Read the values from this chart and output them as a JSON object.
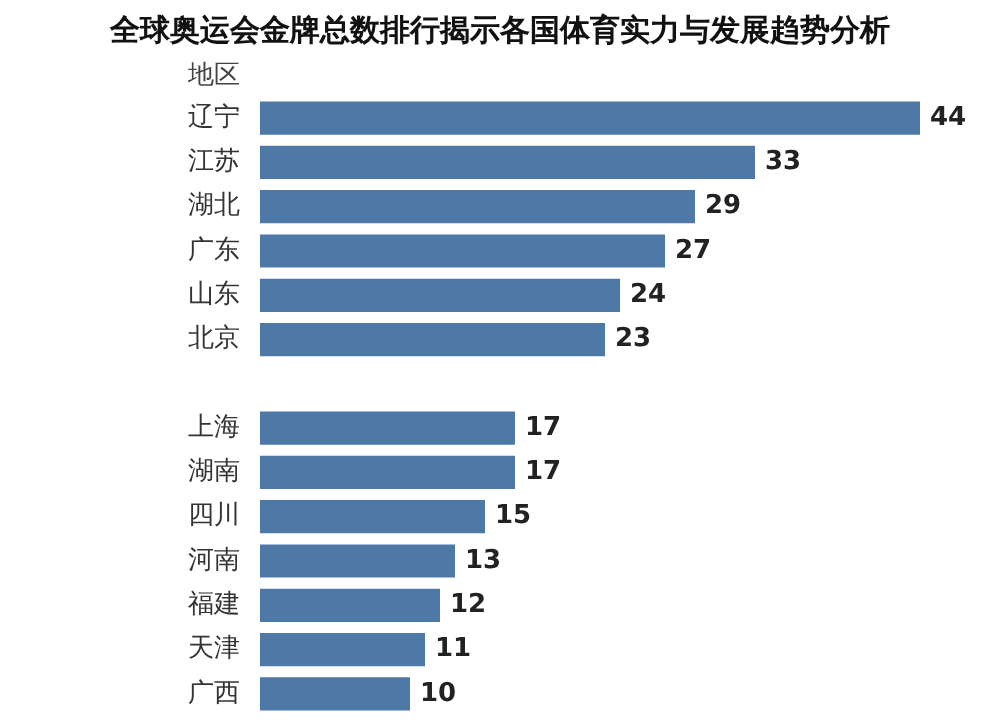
{
  "chart_data": {
    "type": "bar",
    "orientation": "horizontal",
    "title": "全球奥运会金牌总数排行揭示各国体育实力与发展趋势分析",
    "ylabel": "地区",
    "categories": [
      "辽宁",
      "江苏",
      "湖北",
      "广东",
      "山东",
      "北京",
      null,
      "上海",
      "湖南",
      "四川",
      "河南",
      "福建",
      "天津",
      "广西"
    ],
    "values": [
      44,
      33,
      29,
      27,
      24,
      23,
      null,
      17,
      17,
      15,
      13,
      12,
      11,
      10
    ],
    "color": "#4e79a7",
    "data_labels": true
  }
}
